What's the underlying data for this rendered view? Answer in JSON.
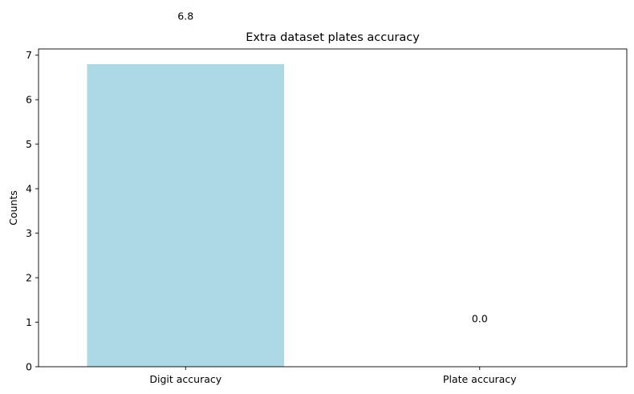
{
  "chart_data": {
    "type": "bar",
    "title": "Extra dataset plates accuracy",
    "xlabel": "",
    "ylabel": "Counts",
    "categories": [
      "Digit accuracy",
      "Plate accuracy"
    ],
    "values": [
      6.8,
      0.0
    ],
    "data_labels": [
      "6.8",
      "0.0"
    ],
    "ylim": [
      0,
      7.14
    ],
    "yticks": [
      0,
      1,
      2,
      3,
      4,
      5,
      6,
      7
    ],
    "bar_color": "#add8e6",
    "grid": false,
    "legend": "none"
  }
}
